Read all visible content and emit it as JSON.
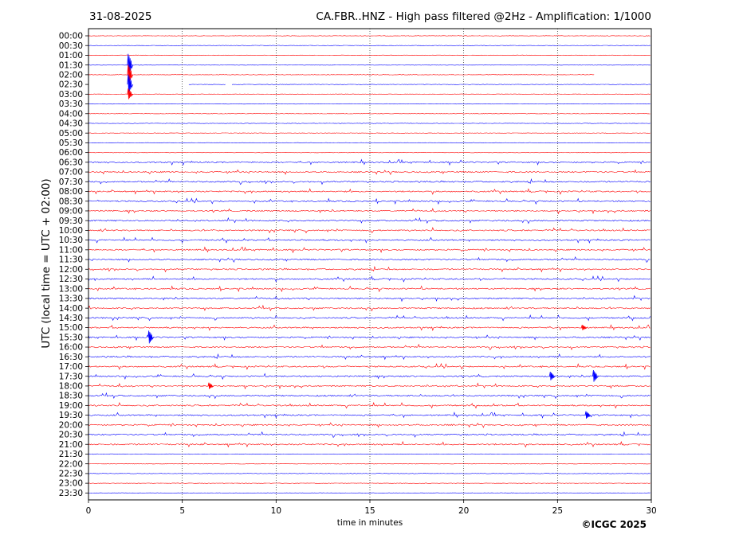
{
  "chart_data": {
    "type": "line",
    "title_left": "31-08-2025",
    "title": "CA.FBR..HNZ - High pass filtered @2Hz - Amplification: 1/1000",
    "xlabel": "time in minutes",
    "ylabel": "UTC (local time = UTC + 02:00)",
    "copyright": "©ICGC 2025",
    "xlim": [
      0,
      30
    ],
    "x_ticks": [
      "0",
      "5",
      "10",
      "15",
      "20",
      "25",
      "30"
    ],
    "x_tick_values": [
      0,
      5,
      10,
      15,
      20,
      25,
      30
    ],
    "rows": [
      "00:00",
      "00:30",
      "01:00",
      "01:30",
      "02:00",
      "02:30",
      "03:00",
      "03:30",
      "04:00",
      "04:30",
      "05:00",
      "05:30",
      "06:00",
      "06:30",
      "07:00",
      "07:30",
      "08:00",
      "08:30",
      "09:00",
      "09:30",
      "10:00",
      "10:30",
      "11:00",
      "11:30",
      "12:00",
      "12:30",
      "13:00",
      "13:30",
      "14:00",
      "14:30",
      "15:00",
      "15:30",
      "16:00",
      "16:30",
      "17:00",
      "17:30",
      "18:00",
      "18:30",
      "19:00",
      "19:30",
      "20:00",
      "20:30",
      "21:00",
      "21:30",
      "22:00",
      "22:30",
      "23:00",
      "23:30"
    ],
    "trace_colors": [
      "#ff0000",
      "#0000ff"
    ],
    "grid": "vertical dotted at x ticks",
    "events": [
      {
        "row": "01:30",
        "minute": 2.2,
        "amplitude": 1.0
      },
      {
        "row": "02:00",
        "minute": 2.2,
        "amplitude": 0.9
      },
      {
        "row": "02:30",
        "minute": 2.2,
        "amplitude": 0.9
      },
      {
        "row": "03:00",
        "minute": 2.2,
        "amplitude": 0.5
      },
      {
        "row": "15:30",
        "minute": 3.3,
        "amplitude": 0.6
      },
      {
        "row": "17:30",
        "minute": 24.7,
        "amplitude": 0.4
      },
      {
        "row": "17:30",
        "minute": 27.0,
        "amplitude": 0.55
      },
      {
        "row": "19:30",
        "minute": 26.6,
        "amplitude": 0.35
      },
      {
        "row": "18:00",
        "minute": 6.5,
        "amplitude": 0.3
      },
      {
        "row": "15:00",
        "minute": 26.4,
        "amplitude": 0.25
      }
    ],
    "trace_ends": [
      {
        "row": "02:00",
        "minute": 27.0
      }
    ],
    "trace_gaps": [
      {
        "row": "02:30",
        "from": 0.0,
        "to": 5.3
      },
      {
        "row": "02:30",
        "from": 7.3,
        "to": 7.6
      }
    ]
  }
}
